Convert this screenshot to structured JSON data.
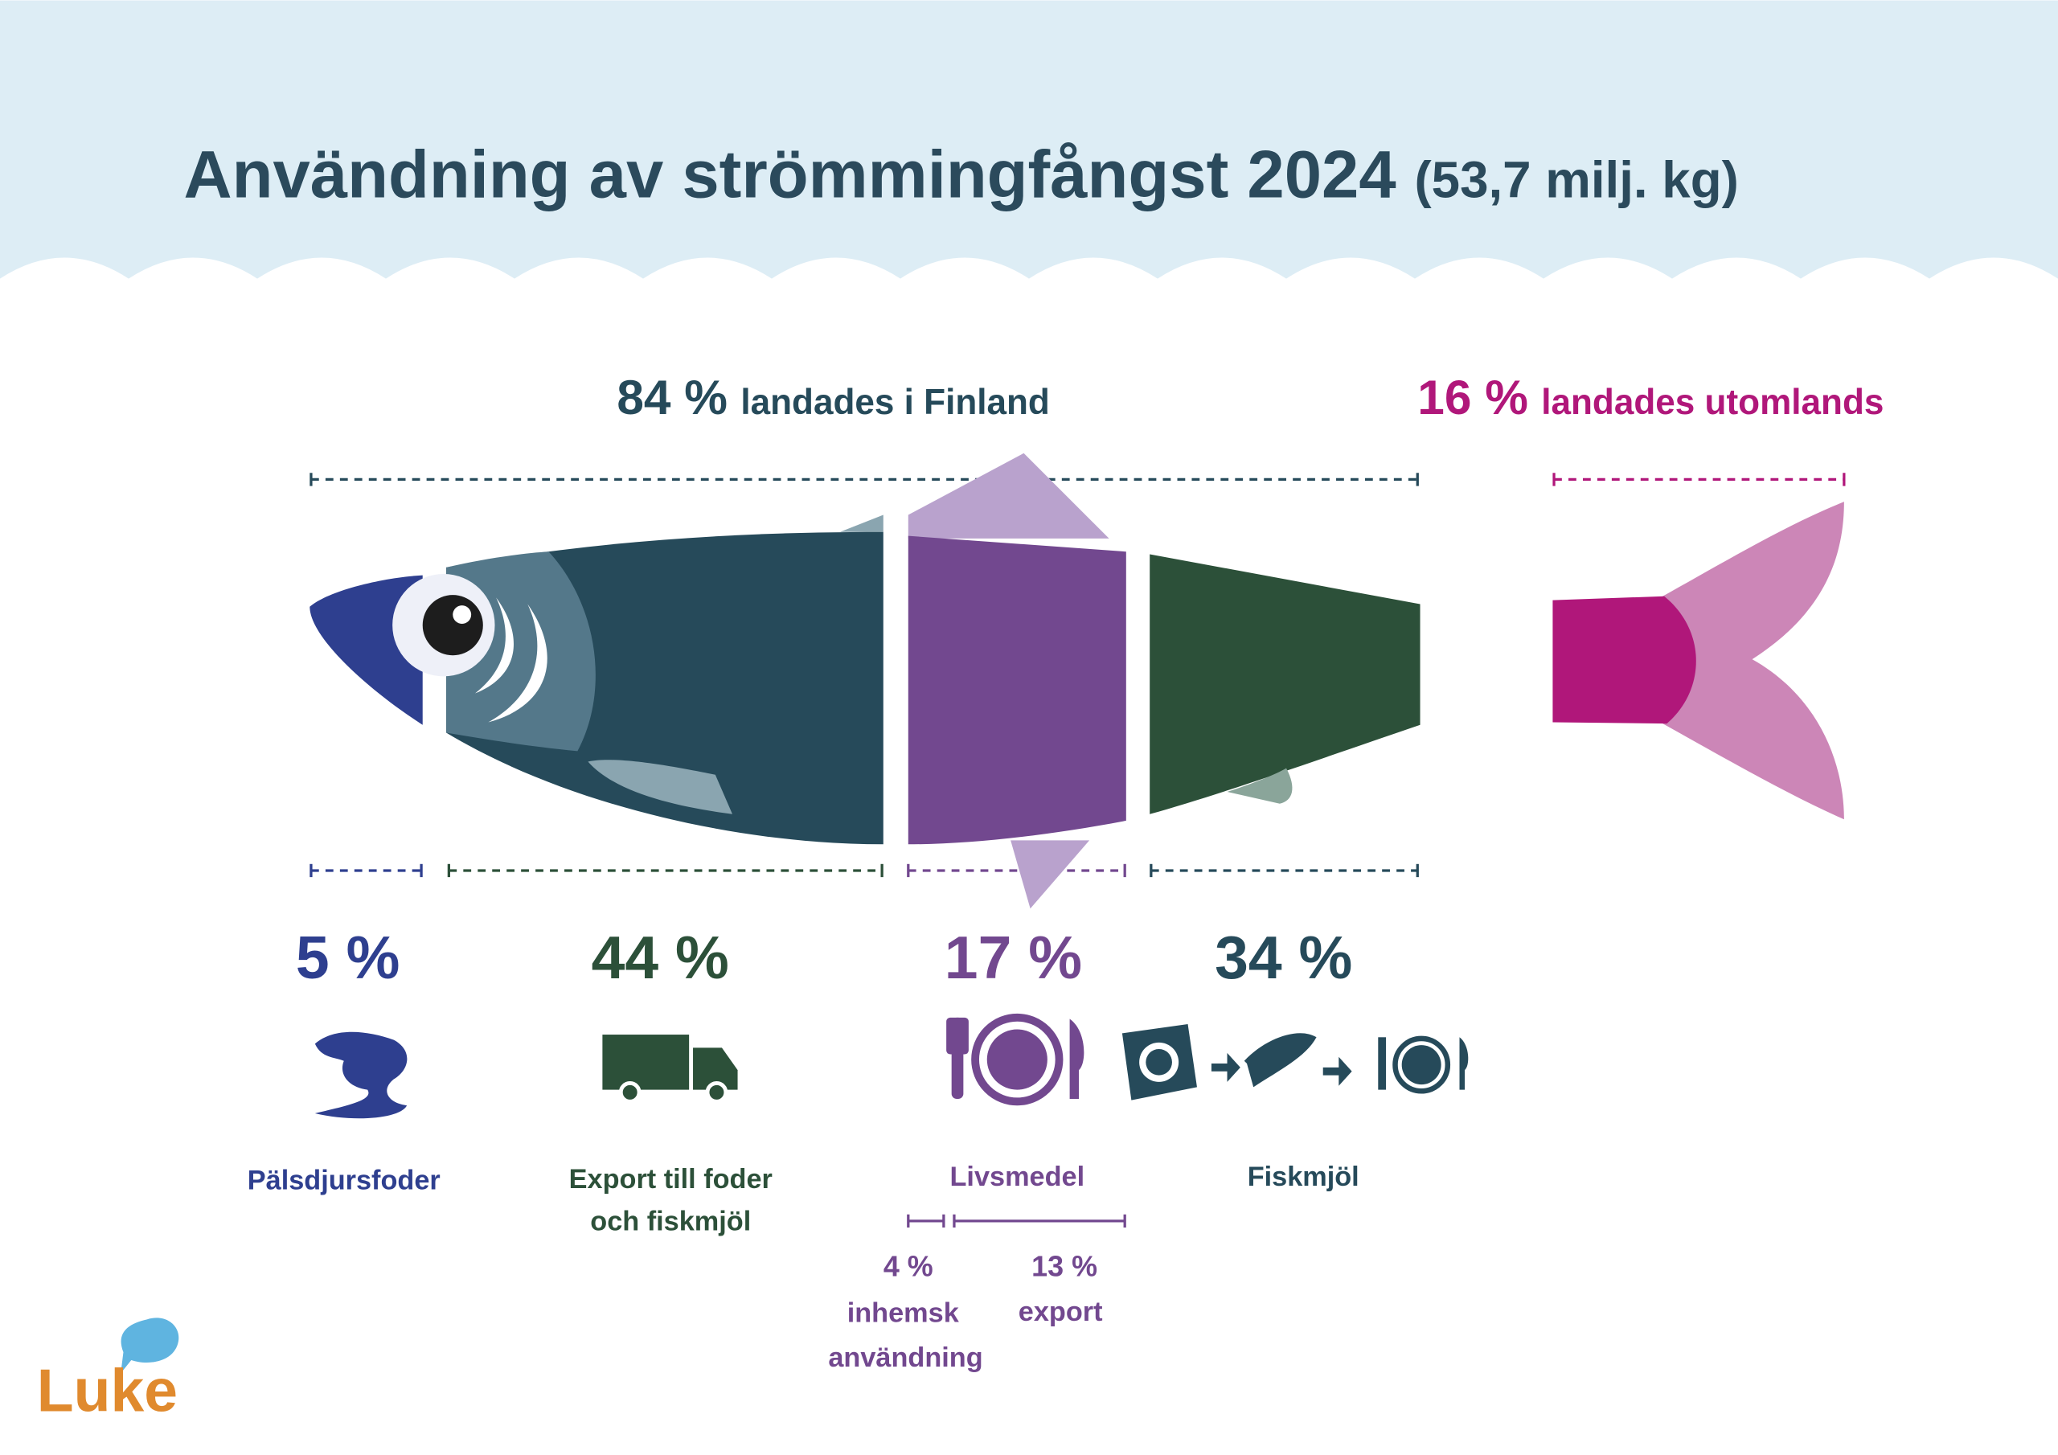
{
  "header": {
    "title": "Användning av strömmingfångst 2024",
    "subtitle": "(53,7 milj. kg)"
  },
  "groups": [
    {
      "percent": "84 %",
      "label": "landades i Finland"
    },
    {
      "percent": "16 %",
      "label": "landades utomlands"
    }
  ],
  "segments": [
    {
      "percent": "5 %",
      "label": [
        "Pälsdjursfoder"
      ]
    },
    {
      "percent": "44 %",
      "label": [
        "Export till foder",
        "och fiskmjöl"
      ]
    },
    {
      "percent": "17 %",
      "label": [
        "Livsmedel"
      ]
    },
    {
      "percent": "34 %",
      "label": [
        "Fiskmjöl"
      ]
    }
  ],
  "breakdown": [
    {
      "percent": "4 %",
      "label": [
        "inhemsk",
        "användning"
      ]
    },
    {
      "percent": "13 %",
      "label": [
        "export"
      ]
    }
  ],
  "logo": "Luke"
}
